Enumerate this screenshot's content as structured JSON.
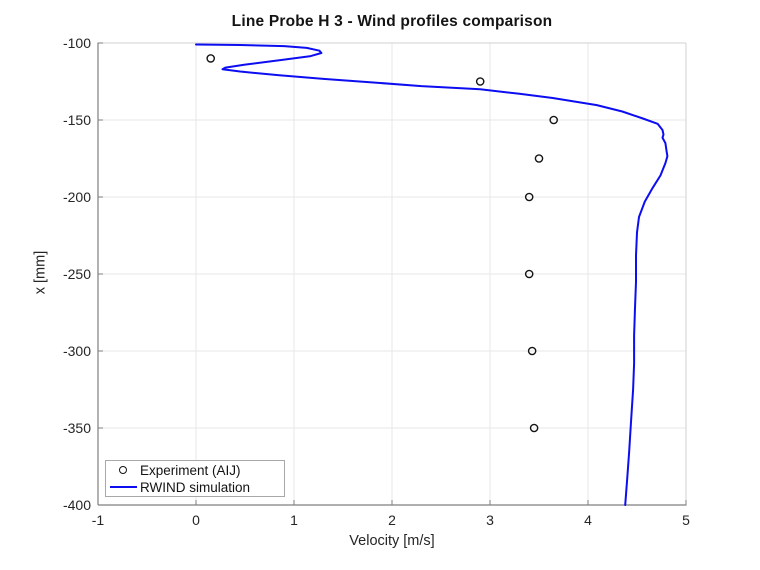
{
  "figure": {
    "background": "#ffffff"
  },
  "chart_data": {
    "type": "line",
    "title": "Line Probe H 3 - Wind profiles comparison",
    "xlabel": "Velocity [m/s]",
    "ylabel": "x [mm]",
    "xlim": [
      -1,
      5
    ],
    "ylim": [
      -400,
      -100
    ],
    "xticks": [
      -1,
      0,
      1,
      2,
      3,
      4,
      5
    ],
    "yticks": [
      -400,
      -350,
      -300,
      -250,
      -200,
      -150,
      -100
    ],
    "grid": true,
    "grid_color": "#e7e7e7",
    "axis_color": "#7f7f7f",
    "box_color": "#d2d2d2",
    "legend_position": "southwest",
    "series": [
      {
        "name": "Experiment (AIJ)",
        "type": "scatter",
        "marker": "open-circle",
        "color": "#141414",
        "points": [
          [
            0.15,
            -110
          ],
          [
            2.9,
            -125
          ],
          [
            3.65,
            -150
          ],
          [
            3.5,
            -175
          ],
          [
            3.4,
            -200
          ],
          [
            3.4,
            -250
          ],
          [
            3.43,
            -300
          ],
          [
            3.45,
            -350
          ]
        ]
      },
      {
        "name": "RWIND simulation",
        "type": "line",
        "color": "#0d0df2",
        "points": [
          [
            0.0,
            -101
          ],
          [
            0.45,
            -101.3
          ],
          [
            0.9,
            -102
          ],
          [
            1.13,
            -103.2
          ],
          [
            1.26,
            -105
          ],
          [
            1.28,
            -106.5
          ],
          [
            1.17,
            -108.5
          ],
          [
            0.88,
            -111
          ],
          [
            0.5,
            -114
          ],
          [
            0.3,
            -116
          ],
          [
            0.27,
            -117
          ],
          [
            0.45,
            -118.5
          ],
          [
            0.85,
            -121
          ],
          [
            1.3,
            -123.3
          ],
          [
            1.88,
            -126
          ],
          [
            2.3,
            -128
          ],
          [
            2.9,
            -130
          ],
          [
            3.3,
            -133
          ],
          [
            3.64,
            -135.7
          ],
          [
            4.09,
            -140.3
          ],
          [
            4.35,
            -144.5
          ],
          [
            4.56,
            -149
          ],
          [
            4.71,
            -152.5
          ],
          [
            4.76,
            -156.5
          ],
          [
            4.77,
            -159.5
          ],
          [
            4.76,
            -161.5
          ],
          [
            4.79,
            -165
          ],
          [
            4.8,
            -169.5
          ],
          [
            4.81,
            -173.5
          ],
          [
            4.79,
            -178
          ],
          [
            4.74,
            -186
          ],
          [
            4.66,
            -194
          ],
          [
            4.58,
            -203
          ],
          [
            4.52,
            -213
          ],
          [
            4.5,
            -223
          ],
          [
            4.49,
            -238
          ],
          [
            4.49,
            -255
          ],
          [
            4.48,
            -272
          ],
          [
            4.47,
            -290
          ],
          [
            4.47,
            -308
          ],
          [
            4.46,
            -325
          ],
          [
            4.44,
            -345
          ],
          [
            4.42,
            -365
          ],
          [
            4.4,
            -383
          ],
          [
            4.38,
            -400
          ]
        ]
      }
    ]
  }
}
